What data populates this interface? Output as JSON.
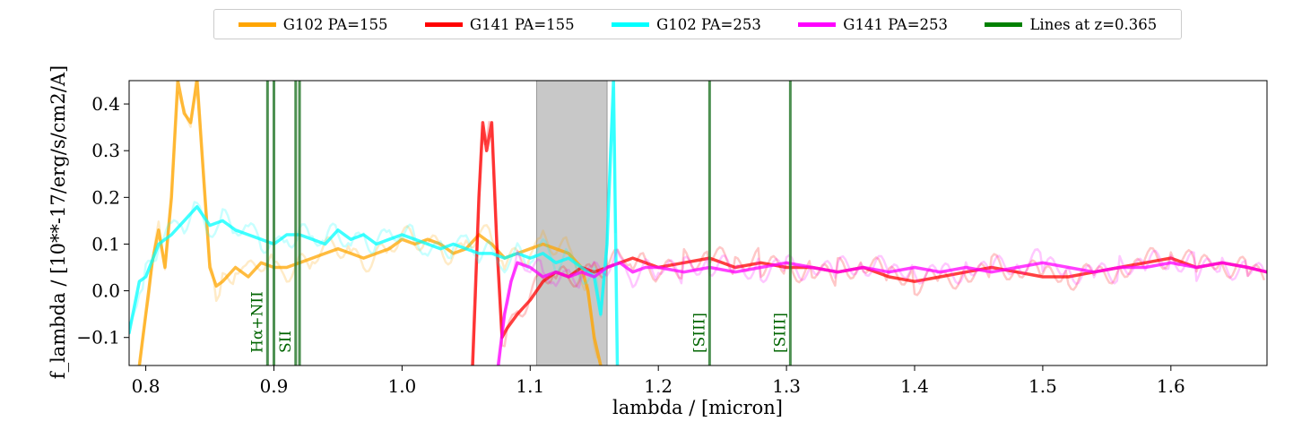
{
  "chart_data": {
    "type": "line",
    "xlabel": "lambda / [micron]",
    "ylabel": "f_lambda / [10**-17/erg/s/cm2/A]",
    "xlim": [
      0.787,
      1.675
    ],
    "ylim": [
      -0.16,
      0.45
    ],
    "x_ticks": [
      "0.8",
      "0.9",
      "1.0",
      "1.1",
      "1.2",
      "1.3",
      "1.4",
      "1.5",
      "1.6"
    ],
    "y_ticks": [
      "−0.1",
      "0.0",
      "0.1",
      "0.2",
      "0.3",
      "0.4"
    ],
    "legend_position": "top-center, outside",
    "grid": false,
    "shaded_region": {
      "x_range": [
        1.105,
        1.16
      ],
      "color": "#999999"
    },
    "lines_redshift_label": "Lines at z=0.365",
    "emission_lines": [
      {
        "label": "Hα+NII",
        "x": [
          0.895,
          0.9
        ]
      },
      {
        "label": "SII",
        "x": [
          0.917,
          0.92
        ]
      },
      {
        "label": "[SIII]",
        "x": [
          1.24
        ]
      },
      {
        "label": "[SIII]",
        "x": [
          1.303
        ]
      }
    ],
    "series": [
      {
        "name": "G102 PA=155",
        "color": "#FFA500",
        "x": [
          0.795,
          0.8,
          0.805,
          0.81,
          0.815,
          0.82,
          0.825,
          0.83,
          0.835,
          0.84,
          0.845,
          0.85,
          0.855,
          0.86,
          0.87,
          0.88,
          0.89,
          0.9,
          0.91,
          0.92,
          0.93,
          0.94,
          0.95,
          0.96,
          0.97,
          0.98,
          0.99,
          1.0,
          1.01,
          1.02,
          1.03,
          1.04,
          1.05,
          1.06,
          1.07,
          1.08,
          1.09,
          1.1,
          1.11,
          1.12,
          1.13,
          1.14,
          1.145,
          1.15,
          1.155
        ],
        "y": [
          -0.16,
          -0.05,
          0.06,
          0.13,
          0.05,
          0.2,
          0.45,
          0.38,
          0.36,
          0.45,
          0.25,
          0.05,
          0.01,
          0.02,
          0.05,
          0.03,
          0.06,
          0.05,
          0.05,
          0.06,
          0.07,
          0.08,
          0.09,
          0.08,
          0.07,
          0.08,
          0.09,
          0.11,
          0.1,
          0.11,
          0.1,
          0.08,
          0.09,
          0.12,
          0.1,
          0.07,
          0.08,
          0.09,
          0.1,
          0.09,
          0.08,
          0.05,
          0.0,
          -0.1,
          -0.16
        ]
      },
      {
        "name": "G141 PA=155",
        "color": "#FF0000",
        "x": [
          1.055,
          1.06,
          1.063,
          1.066,
          1.07,
          1.074,
          1.078,
          1.082,
          1.09,
          1.1,
          1.11,
          1.12,
          1.13,
          1.14,
          1.15,
          1.16,
          1.17,
          1.18,
          1.19,
          1.2,
          1.22,
          1.24,
          1.26,
          1.28,
          1.3,
          1.32,
          1.34,
          1.36,
          1.38,
          1.4,
          1.42,
          1.44,
          1.46,
          1.48,
          1.5,
          1.52,
          1.54,
          1.56,
          1.58,
          1.6,
          1.62,
          1.64,
          1.66,
          1.675
        ],
        "y": [
          -0.16,
          0.2,
          0.36,
          0.3,
          0.36,
          0.1,
          -0.1,
          -0.08,
          -0.05,
          -0.02,
          0.02,
          0.04,
          0.03,
          0.05,
          0.04,
          0.05,
          0.06,
          0.07,
          0.06,
          0.05,
          0.06,
          0.07,
          0.05,
          0.06,
          0.05,
          0.05,
          0.04,
          0.05,
          0.03,
          0.02,
          0.03,
          0.04,
          0.05,
          0.04,
          0.03,
          0.03,
          0.04,
          0.05,
          0.06,
          0.07,
          0.05,
          0.06,
          0.05,
          0.04
        ]
      },
      {
        "name": "G102 PA=253",
        "color": "#00FFFF",
        "x": [
          0.787,
          0.795,
          0.8,
          0.81,
          0.82,
          0.83,
          0.84,
          0.85,
          0.86,
          0.87,
          0.88,
          0.89,
          0.9,
          0.91,
          0.92,
          0.93,
          0.94,
          0.95,
          0.96,
          0.97,
          0.98,
          0.99,
          1.0,
          1.01,
          1.02,
          1.03,
          1.04,
          1.05,
          1.06,
          1.07,
          1.08,
          1.09,
          1.1,
          1.11,
          1.12,
          1.13,
          1.14,
          1.15,
          1.155,
          1.16,
          1.165,
          1.168
        ],
        "y": [
          -0.09,
          0.02,
          0.03,
          0.1,
          0.12,
          0.15,
          0.18,
          0.14,
          0.15,
          0.13,
          0.12,
          0.11,
          0.1,
          0.12,
          0.12,
          0.11,
          0.1,
          0.13,
          0.11,
          0.12,
          0.1,
          0.11,
          0.12,
          0.11,
          0.1,
          0.09,
          0.1,
          0.09,
          0.08,
          0.08,
          0.07,
          0.08,
          0.07,
          0.08,
          0.06,
          0.07,
          0.05,
          0.03,
          -0.05,
          0.1,
          0.45,
          -0.16
        ]
      },
      {
        "name": "G141 PA=253",
        "color": "#FF00FF",
        "x": [
          1.075,
          1.08,
          1.085,
          1.09,
          1.1,
          1.11,
          1.12,
          1.13,
          1.14,
          1.15,
          1.16,
          1.17,
          1.18,
          1.19,
          1.2,
          1.22,
          1.24,
          1.26,
          1.28,
          1.3,
          1.32,
          1.34,
          1.36,
          1.38,
          1.4,
          1.42,
          1.44,
          1.46,
          1.48,
          1.5,
          1.52,
          1.54,
          1.56,
          1.58,
          1.6,
          1.62,
          1.64,
          1.66,
          1.675
        ],
        "y": [
          -0.16,
          -0.05,
          0.02,
          0.06,
          0.05,
          0.03,
          0.04,
          0.03,
          0.04,
          0.03,
          0.05,
          0.06,
          0.04,
          0.05,
          0.05,
          0.04,
          0.05,
          0.04,
          0.05,
          0.06,
          0.05,
          0.04,
          0.05,
          0.04,
          0.05,
          0.04,
          0.05,
          0.04,
          0.05,
          0.06,
          0.05,
          0.04,
          0.05,
          0.05,
          0.06,
          0.05,
          0.06,
          0.05,
          0.04
        ]
      }
    ]
  },
  "legend": [
    {
      "label": "G102 PA=155",
      "color": "#FFA500"
    },
    {
      "label": "G141 PA=155",
      "color": "#FF0000"
    },
    {
      "label": "G102 PA=253",
      "color": "#00FFFF"
    },
    {
      "label": "G141 PA=253",
      "color": "#FF00FF"
    },
    {
      "label": "Lines at z=0.365",
      "color": "#008000"
    }
  ]
}
